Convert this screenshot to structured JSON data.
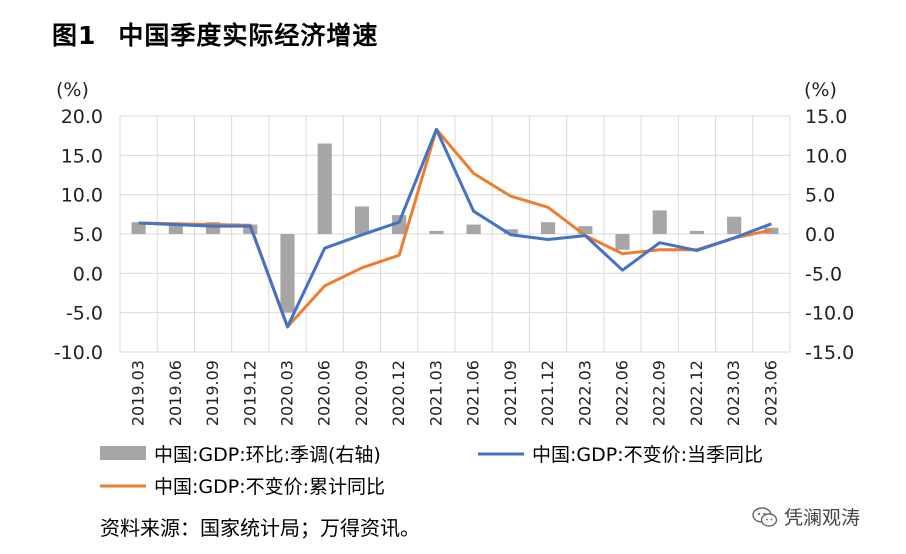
{
  "title": {
    "fig": "图1",
    "text": "中国季度实际经济增速"
  },
  "source": "资料来源：国家统计局；万得资讯。",
  "watermark": "凭澜观涛",
  "chart_data": {
    "type": "bar+line",
    "categories": [
      "2019.03",
      "2019.06",
      "2019.09",
      "2019.12",
      "2020.03",
      "2020.06",
      "2020.09",
      "2020.12",
      "2021.03",
      "2021.06",
      "2021.09",
      "2021.12",
      "2022.03",
      "2022.06",
      "2022.09",
      "2022.12",
      "2023.03",
      "2023.06"
    ],
    "left_axis": {
      "unit": "(%)",
      "ylim": [
        -10,
        20
      ],
      "ticks": [
        "20.0",
        "15.0",
        "10.0",
        "5.0",
        "0.0",
        "-5.0",
        "-10.0"
      ]
    },
    "right_axis": {
      "unit": "(%)",
      "ylim": [
        -15,
        15
      ],
      "ticks": [
        "15.0",
        "10.0",
        "5.0",
        "0.0",
        "-5.0",
        "-10.0",
        "-15.0"
      ]
    },
    "series": [
      {
        "name": "中国:GDP:环比:季调(右轴)",
        "type": "bar",
        "axis": "right",
        "color": "#a6a6a6",
        "values": [
          1.5,
          1.4,
          1.5,
          1.2,
          -10.0,
          11.5,
          3.5,
          2.4,
          0.4,
          1.2,
          0.6,
          1.5,
          1.0,
          -2.0,
          3.0,
          0.4,
          2.2,
          0.8
        ]
      },
      {
        "name": "中国:GDP:不变价:当季同比",
        "type": "line",
        "axis": "left",
        "color": "#4472c4",
        "values": [
          6.4,
          6.2,
          6.0,
          6.0,
          -6.8,
          3.2,
          4.9,
          6.5,
          18.3,
          7.9,
          4.9,
          4.3,
          4.8,
          0.4,
          3.9,
          2.9,
          4.5,
          6.3
        ]
      },
      {
        "name": "中国:GDP:不变价:累计同比",
        "type": "line",
        "axis": "left",
        "color": "#ed7d31",
        "values": [
          6.4,
          6.3,
          6.2,
          6.1,
          -6.8,
          -1.6,
          0.7,
          2.3,
          18.3,
          12.7,
          9.8,
          8.4,
          4.8,
          2.5,
          3.0,
          3.0,
          4.5,
          5.5
        ]
      }
    ]
  }
}
